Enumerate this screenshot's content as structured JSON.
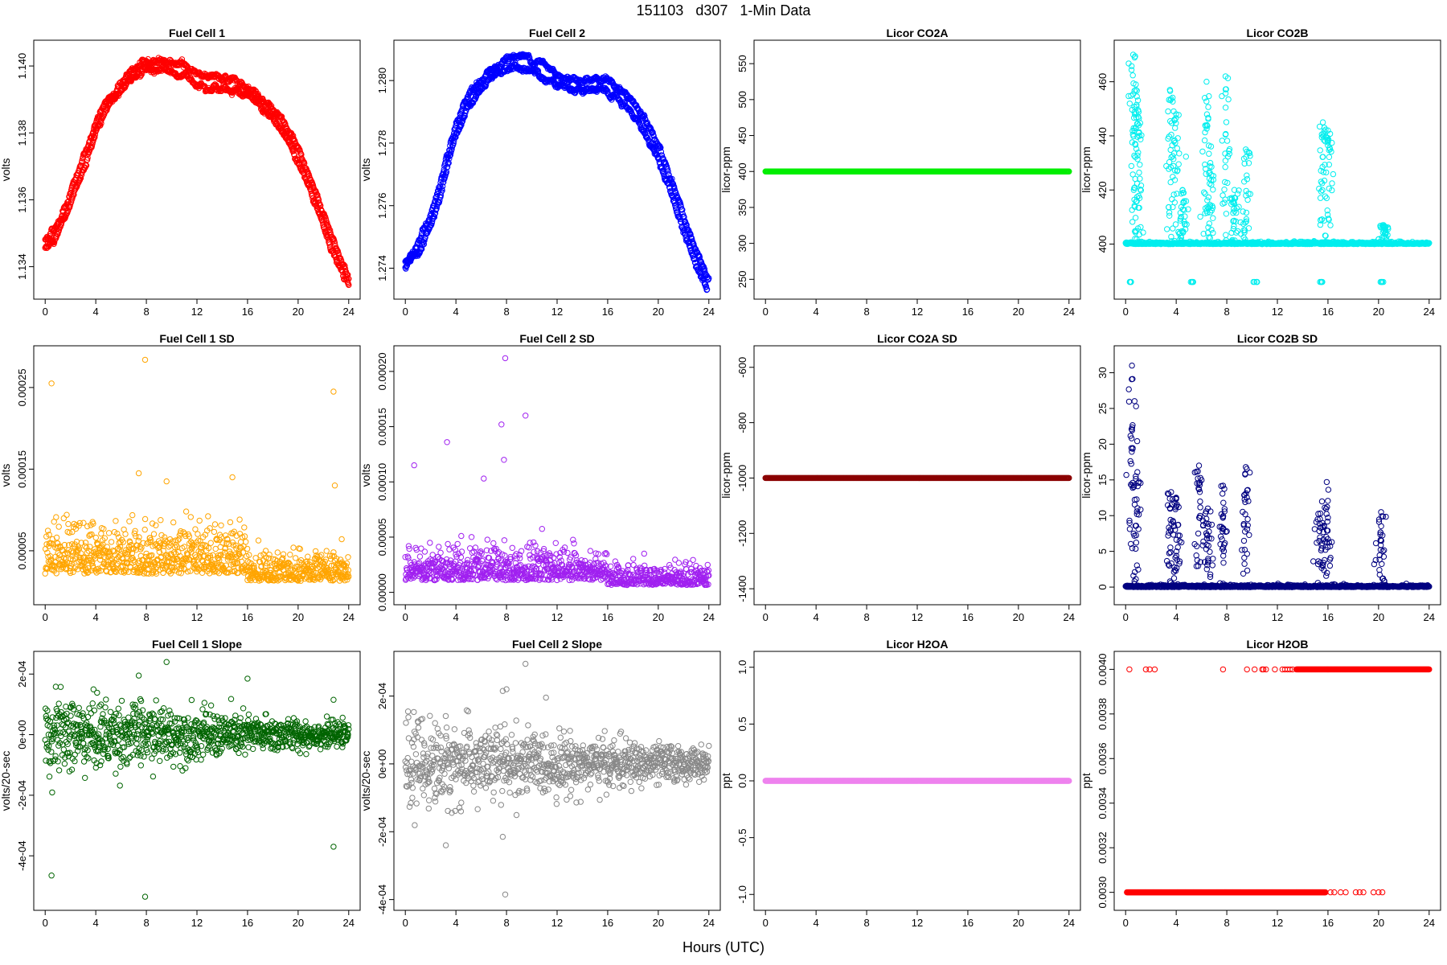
{
  "page": {
    "title": "151103   d307   1-Min Data",
    "xlabel": "Hours (UTC)"
  },
  "chart_data": [
    {
      "id": "fc1",
      "type": "scatter",
      "title": "Fuel Cell 1",
      "ylabel": "volts",
      "color": "#ff0000",
      "xlim": [
        0,
        24
      ],
      "ylim": [
        1.1333,
        1.1405
      ],
      "xticks": [
        0,
        4,
        8,
        12,
        16,
        20,
        24
      ],
      "xtick_labels": [
        "0",
        "4",
        "8",
        "12",
        "16",
        "20",
        "24"
      ],
      "yticks": [
        1.134,
        1.136,
        1.138,
        1.14
      ],
      "ytick_labels": [
        "1.134",
        "1.136",
        "1.138",
        "1.140"
      ],
      "series": [
        {
          "x": [
            0,
            1,
            2,
            3,
            4,
            5,
            6,
            7,
            8,
            9,
            10,
            11,
            12,
            13,
            14,
            15,
            16,
            17,
            18,
            19,
            20,
            21,
            22,
            23,
            24
          ],
          "y": [
            1.1348,
            1.1353,
            1.1362,
            1.1372,
            1.1383,
            1.139,
            1.1395,
            1.1399,
            1.1401,
            1.1402,
            1.1401,
            1.14,
            1.1398,
            1.1397,
            1.1396,
            1.1396,
            1.1394,
            1.1391,
            1.1387,
            1.1382,
            1.1375,
            1.1366,
            1.1356,
            1.1346,
            1.1336
          ]
        },
        {
          "x": [
            0,
            1,
            2,
            3,
            4,
            5,
            6,
            7,
            8,
            9,
            10,
            11,
            12,
            13,
            14,
            15,
            16,
            17,
            18,
            19,
            20,
            21,
            22,
            23,
            24
          ],
          "y": [
            1.1346,
            1.135,
            1.1358,
            1.1368,
            1.138,
            1.1388,
            1.1393,
            1.1397,
            1.1399,
            1.1399,
            1.1398,
            1.1397,
            1.1395,
            1.1394,
            1.1393,
            1.1393,
            1.1391,
            1.1388,
            1.1384,
            1.1379,
            1.1372,
            1.1362,
            1.1352,
            1.1342,
            1.1334
          ]
        }
      ]
    },
    {
      "id": "fc2",
      "type": "scatter",
      "title": "Fuel Cell 2",
      "ylabel": "volts",
      "color": "#0000ff",
      "xlim": [
        0,
        24
      ],
      "ylim": [
        1.2733,
        1.281
      ],
      "xticks": [
        0,
        4,
        8,
        12,
        16,
        20,
        24
      ],
      "xtick_labels": [
        "0",
        "4",
        "8",
        "12",
        "16",
        "20",
        "24"
      ],
      "yticks": [
        1.274,
        1.276,
        1.278,
        1.28
      ],
      "ytick_labels": [
        "1.274",
        "1.276",
        "1.278",
        "1.280"
      ],
      "series": [
        {
          "x": [
            0,
            1,
            2,
            3,
            4,
            5,
            6,
            7,
            8,
            9,
            10,
            11,
            12,
            13,
            14,
            15,
            16,
            17,
            18,
            19,
            20,
            21,
            22,
            23,
            24
          ],
          "y": [
            1.2742,
            1.2748,
            1.2757,
            1.277,
            1.2785,
            1.2795,
            1.28,
            1.2804,
            1.2807,
            1.2808,
            1.2807,
            1.2805,
            1.2802,
            1.2801,
            1.28,
            1.2801,
            1.28,
            1.2797,
            1.2793,
            1.2787,
            1.2779,
            1.2769,
            1.2757,
            1.2745,
            1.2736
          ]
        },
        {
          "x": [
            0,
            1,
            2,
            3,
            4,
            5,
            6,
            7,
            8,
            9,
            10,
            11,
            12,
            13,
            14,
            15,
            16,
            17,
            18,
            19,
            20,
            21,
            22,
            23,
            24
          ],
          "y": [
            1.274,
            1.2745,
            1.2753,
            1.2766,
            1.2782,
            1.2792,
            1.2797,
            1.2801,
            1.2804,
            1.2804,
            1.2803,
            1.2801,
            1.2799,
            1.2798,
            1.2797,
            1.2797,
            1.2796,
            1.2793,
            1.2789,
            1.2783,
            1.2775,
            1.2764,
            1.2752,
            1.2741,
            1.2733
          ]
        }
      ]
    },
    {
      "id": "co2a",
      "type": "scatter",
      "title": "Licor CO2A",
      "ylabel": "licor-ppm",
      "color": "#00ee00",
      "xlim": [
        0,
        24
      ],
      "ylim": [
        235,
        570
      ],
      "xticks": [
        0,
        4,
        8,
        12,
        16,
        20,
        24
      ],
      "xtick_labels": [
        "0",
        "4",
        "8",
        "12",
        "16",
        "20",
        "24"
      ],
      "yticks": [
        250,
        300,
        350,
        400,
        450,
        500,
        550
      ],
      "ytick_labels": [
        "250",
        "300",
        "350",
        "400",
        "450",
        "500",
        "550"
      ],
      "constant": 400
    },
    {
      "id": "co2b",
      "type": "scatter",
      "title": "Licor CO2B",
      "ylabel": "licor-ppm",
      "color": "#00eeee",
      "xlim": [
        0,
        24
      ],
      "ylim": [
        383,
        472
      ],
      "xticks": [
        0,
        4,
        8,
        12,
        16,
        20,
        24
      ],
      "xtick_labels": [
        "0",
        "4",
        "8",
        "12",
        "16",
        "20",
        "24"
      ],
      "yticks": [
        400,
        420,
        440,
        460
      ],
      "ytick_labels": [
        "400",
        "420",
        "440",
        "460"
      ],
      "baseline": 400,
      "spikes": [
        {
          "x": 0.6,
          "y": 470
        },
        {
          "x": 0.8,
          "y": 457
        },
        {
          "x": 1.0,
          "y": 447
        },
        {
          "x": 3.5,
          "y": 457
        },
        {
          "x": 4.0,
          "y": 448
        },
        {
          "x": 4.5,
          "y": 420
        },
        {
          "x": 6.4,
          "y": 460
        },
        {
          "x": 6.7,
          "y": 430
        },
        {
          "x": 7.9,
          "y": 462
        },
        {
          "x": 8.6,
          "y": 420
        },
        {
          "x": 9.5,
          "y": 435
        },
        {
          "x": 15.6,
          "y": 445
        },
        {
          "x": 16.0,
          "y": 442
        },
        {
          "x": 20.4,
          "y": 407
        }
      ],
      "dips": [
        {
          "x": 0.4,
          "y": 386
        },
        {
          "x": 5.3,
          "y": 386
        },
        {
          "x": 10.3,
          "y": 386
        },
        {
          "x": 15.5,
          "y": 386
        },
        {
          "x": 20.3,
          "y": 386
        }
      ]
    },
    {
      "id": "fc1sd",
      "type": "scatter",
      "title": "Fuel Cell 1 SD",
      "ylabel": "volts",
      "color": "#ffa500",
      "xlim": [
        0,
        24
      ],
      "ylim": [
        -5e-06,
        0.00029
      ],
      "xticks": [
        0,
        4,
        8,
        12,
        16,
        20,
        24
      ],
      "xtick_labels": [
        "0",
        "4",
        "8",
        "12",
        "16",
        "20",
        "24"
      ],
      "yticks": [
        5e-05,
        0.00015,
        0.00025
      ],
      "ytick_labels": [
        "0.00005",
        "0.00015",
        "0.00025"
      ],
      "typical_level": 4e-05,
      "outliers": [
        {
          "x": 0.5,
          "y": 0.000255
        },
        {
          "x": 7.9,
          "y": 0.000284
        },
        {
          "x": 22.8,
          "y": 0.000245
        },
        {
          "x": 7.4,
          "y": 0.000145
        },
        {
          "x": 22.9,
          "y": 0.00013
        },
        {
          "x": 9.6,
          "y": 0.000135
        },
        {
          "x": 14.8,
          "y": 0.00014
        }
      ]
    },
    {
      "id": "fc2sd",
      "type": "scatter",
      "title": "Fuel Cell 2 SD",
      "ylabel": "volts",
      "color": "#a020f0",
      "xlim": [
        0,
        24
      ],
      "ylim": [
        -3e-06,
        0.000215
      ],
      "xticks": [
        0,
        4,
        8,
        12,
        16,
        20,
        24
      ],
      "xtick_labels": [
        "0",
        "4",
        "8",
        "12",
        "16",
        "20",
        "24"
      ],
      "yticks": [
        0,
        5e-05,
        0.0001,
        0.00015,
        0.0002
      ],
      "ytick_labels": [
        "0.00000",
        "0.00005",
        "0.00010",
        "0.00015",
        "0.00020"
      ],
      "typical_level": 2e-05,
      "outliers": [
        {
          "x": 7.9,
          "y": 0.000212
        },
        {
          "x": 9.5,
          "y": 0.00016
        },
        {
          "x": 7.6,
          "y": 0.000152
        },
        {
          "x": 3.3,
          "y": 0.000136
        },
        {
          "x": 7.8,
          "y": 0.00012
        },
        {
          "x": 0.7,
          "y": 0.000115
        },
        {
          "x": 6.2,
          "y": 0.000103
        }
      ]
    },
    {
      "id": "co2asd",
      "type": "scatter",
      "title": "Licor CO2A SD",
      "ylabel": "licor-ppm",
      "color": "#8b0000",
      "xlim": [
        0,
        24
      ],
      "ylim": [
        -1425,
        -555
      ],
      "xticks": [
        0,
        4,
        8,
        12,
        16,
        20,
        24
      ],
      "xtick_labels": [
        "0",
        "4",
        "8",
        "12",
        "16",
        "20",
        "24"
      ],
      "yticks": [
        -1400,
        -1200,
        -1000,
        -800,
        -600
      ],
      "ytick_labels": [
        "-1400",
        "-1200",
        "-1000",
        "-800",
        "-600"
      ],
      "constant": -1000
    },
    {
      "id": "co2bsd",
      "type": "scatter",
      "title": "Licor CO2B SD",
      "ylabel": "licor-ppm",
      "color": "#000080",
      "xlim": [
        0,
        24
      ],
      "ylim": [
        -1.2,
        32.5
      ],
      "xticks": [
        0,
        4,
        8,
        12,
        16,
        20,
        24
      ],
      "xtick_labels": [
        "0",
        "4",
        "8",
        "12",
        "16",
        "20",
        "24"
      ],
      "yticks": [
        0,
        5,
        10,
        15,
        20,
        25,
        30
      ],
      "ytick_labels": [
        "0",
        "5",
        "10",
        "15",
        "20",
        "25",
        "30"
      ],
      "baseline": 0,
      "spikes": [
        {
          "x": 0.5,
          "y": 31
        },
        {
          "x": 0.8,
          "y": 15.5
        },
        {
          "x": 3.6,
          "y": 13.3
        },
        {
          "x": 4.0,
          "y": 12.5
        },
        {
          "x": 5.8,
          "y": 17
        },
        {
          "x": 6.5,
          "y": 11
        },
        {
          "x": 7.7,
          "y": 14.2
        },
        {
          "x": 9.5,
          "y": 16.8
        },
        {
          "x": 15.4,
          "y": 10.3
        },
        {
          "x": 15.9,
          "y": 14.7
        },
        {
          "x": 20.2,
          "y": 10.5
        }
      ]
    },
    {
      "id": "fc1slope",
      "type": "scatter",
      "title": "Fuel Cell 1 Slope",
      "ylabel": "volts/20-sec",
      "color": "#006400",
      "xlim": [
        0,
        24
      ],
      "ylim": [
        -0.00055,
        0.000245
      ],
      "xticks": [
        0,
        4,
        8,
        12,
        16,
        20,
        24
      ],
      "xtick_labels": [
        "0",
        "4",
        "8",
        "12",
        "16",
        "20",
        "24"
      ],
      "yticks": [
        -0.0004,
        -0.0002,
        0,
        0.0002
      ],
      "ytick_labels": [
        "-4e-04",
        "-2e-04",
        "0e+00",
        "2e-04"
      ],
      "spread_start": 0.00012,
      "spread_end": 3e-05,
      "outliers": [
        {
          "x": 0.5,
          "y": -0.000465
        },
        {
          "x": 7.9,
          "y": -0.000535
        },
        {
          "x": 22.8,
          "y": -0.00037
        },
        {
          "x": 9.6,
          "y": 0.00024
        },
        {
          "x": 7.4,
          "y": 0.000195
        },
        {
          "x": 16.0,
          "y": 0.000185
        },
        {
          "x": 22.8,
          "y": 0.000115
        }
      ]
    },
    {
      "id": "fc2slope",
      "type": "scatter",
      "title": "Fuel Cell 2 Slope",
      "ylabel": "volts/20-sec",
      "color": "#888888",
      "xlim": [
        0,
        24
      ],
      "ylim": [
        -0.000405,
        0.000305
      ],
      "xticks": [
        0,
        4,
        8,
        12,
        16,
        20,
        24
      ],
      "xtick_labels": [
        "0",
        "4",
        "8",
        "12",
        "16",
        "20",
        "24"
      ],
      "yticks": [
        -0.0004,
        -0.0002,
        0,
        0.0002
      ],
      "ytick_labels": [
        "-4e-04",
        "-2e-04",
        "0e+00",
        "2e-04"
      ],
      "spread_start": 0.00012,
      "spread_end": 4e-05,
      "outliers": [
        {
          "x": 9.5,
          "y": 0.000295
        },
        {
          "x": 7.9,
          "y": -0.000385
        },
        {
          "x": 7.7,
          "y": -0.000215
        },
        {
          "x": 3.2,
          "y": -0.00024
        },
        {
          "x": 7.7,
          "y": 0.000215
        },
        {
          "x": 8.0,
          "y": 0.00022
        }
      ]
    },
    {
      "id": "h2oa",
      "type": "scatter",
      "title": "Licor H2OA",
      "ylabel": "ppt",
      "color": "#ee82ee",
      "xlim": [
        0,
        24
      ],
      "ylim": [
        -1.06,
        1.06
      ],
      "xticks": [
        0,
        4,
        8,
        12,
        16,
        20,
        24
      ],
      "xtick_labels": [
        "0",
        "4",
        "8",
        "12",
        "16",
        "20",
        "24"
      ],
      "yticks": [
        -1,
        -0.5,
        0,
        0.5,
        1
      ],
      "ytick_labels": [
        "-1.0",
        "-0.5",
        "0.0",
        "0.5",
        "1.0"
      ],
      "constant": 0
    },
    {
      "id": "h2ob",
      "type": "scatter",
      "title": "Licor H2OB",
      "ylabel": "ppt",
      "color": "#ff0000",
      "xlim": [
        0,
        24
      ],
      "ylim": [
        0.00296,
        0.00404
      ],
      "xticks": [
        0,
        4,
        8,
        12,
        16,
        20,
        24
      ],
      "xtick_labels": [
        "0",
        "4",
        "8",
        "12",
        "16",
        "20",
        "24"
      ],
      "yticks": [
        0.003,
        0.0032,
        0.0034,
        0.0036,
        0.0038,
        0.004
      ],
      "ytick_labels": [
        "0.0030",
        "0.0032",
        "0.0034",
        "0.0036",
        "0.0038",
        "0.0040"
      ],
      "low_value": 0.003,
      "high_value": 0.004,
      "low_dense_end": 15.8,
      "low_sparse": [
        16.2,
        16.5,
        17.0,
        17.4,
        18.2,
        18.5,
        18.8,
        19.6,
        20.0,
        20.3
      ],
      "high_sparse": [
        0.3,
        1.6,
        1.9,
        2.3,
        7.7,
        9.6,
        10.2,
        10.8,
        10.9,
        11.1,
        11.8,
        12.4,
        12.6,
        12.8,
        13.0,
        13.2
      ],
      "high_dense_start": 13.5
    }
  ]
}
